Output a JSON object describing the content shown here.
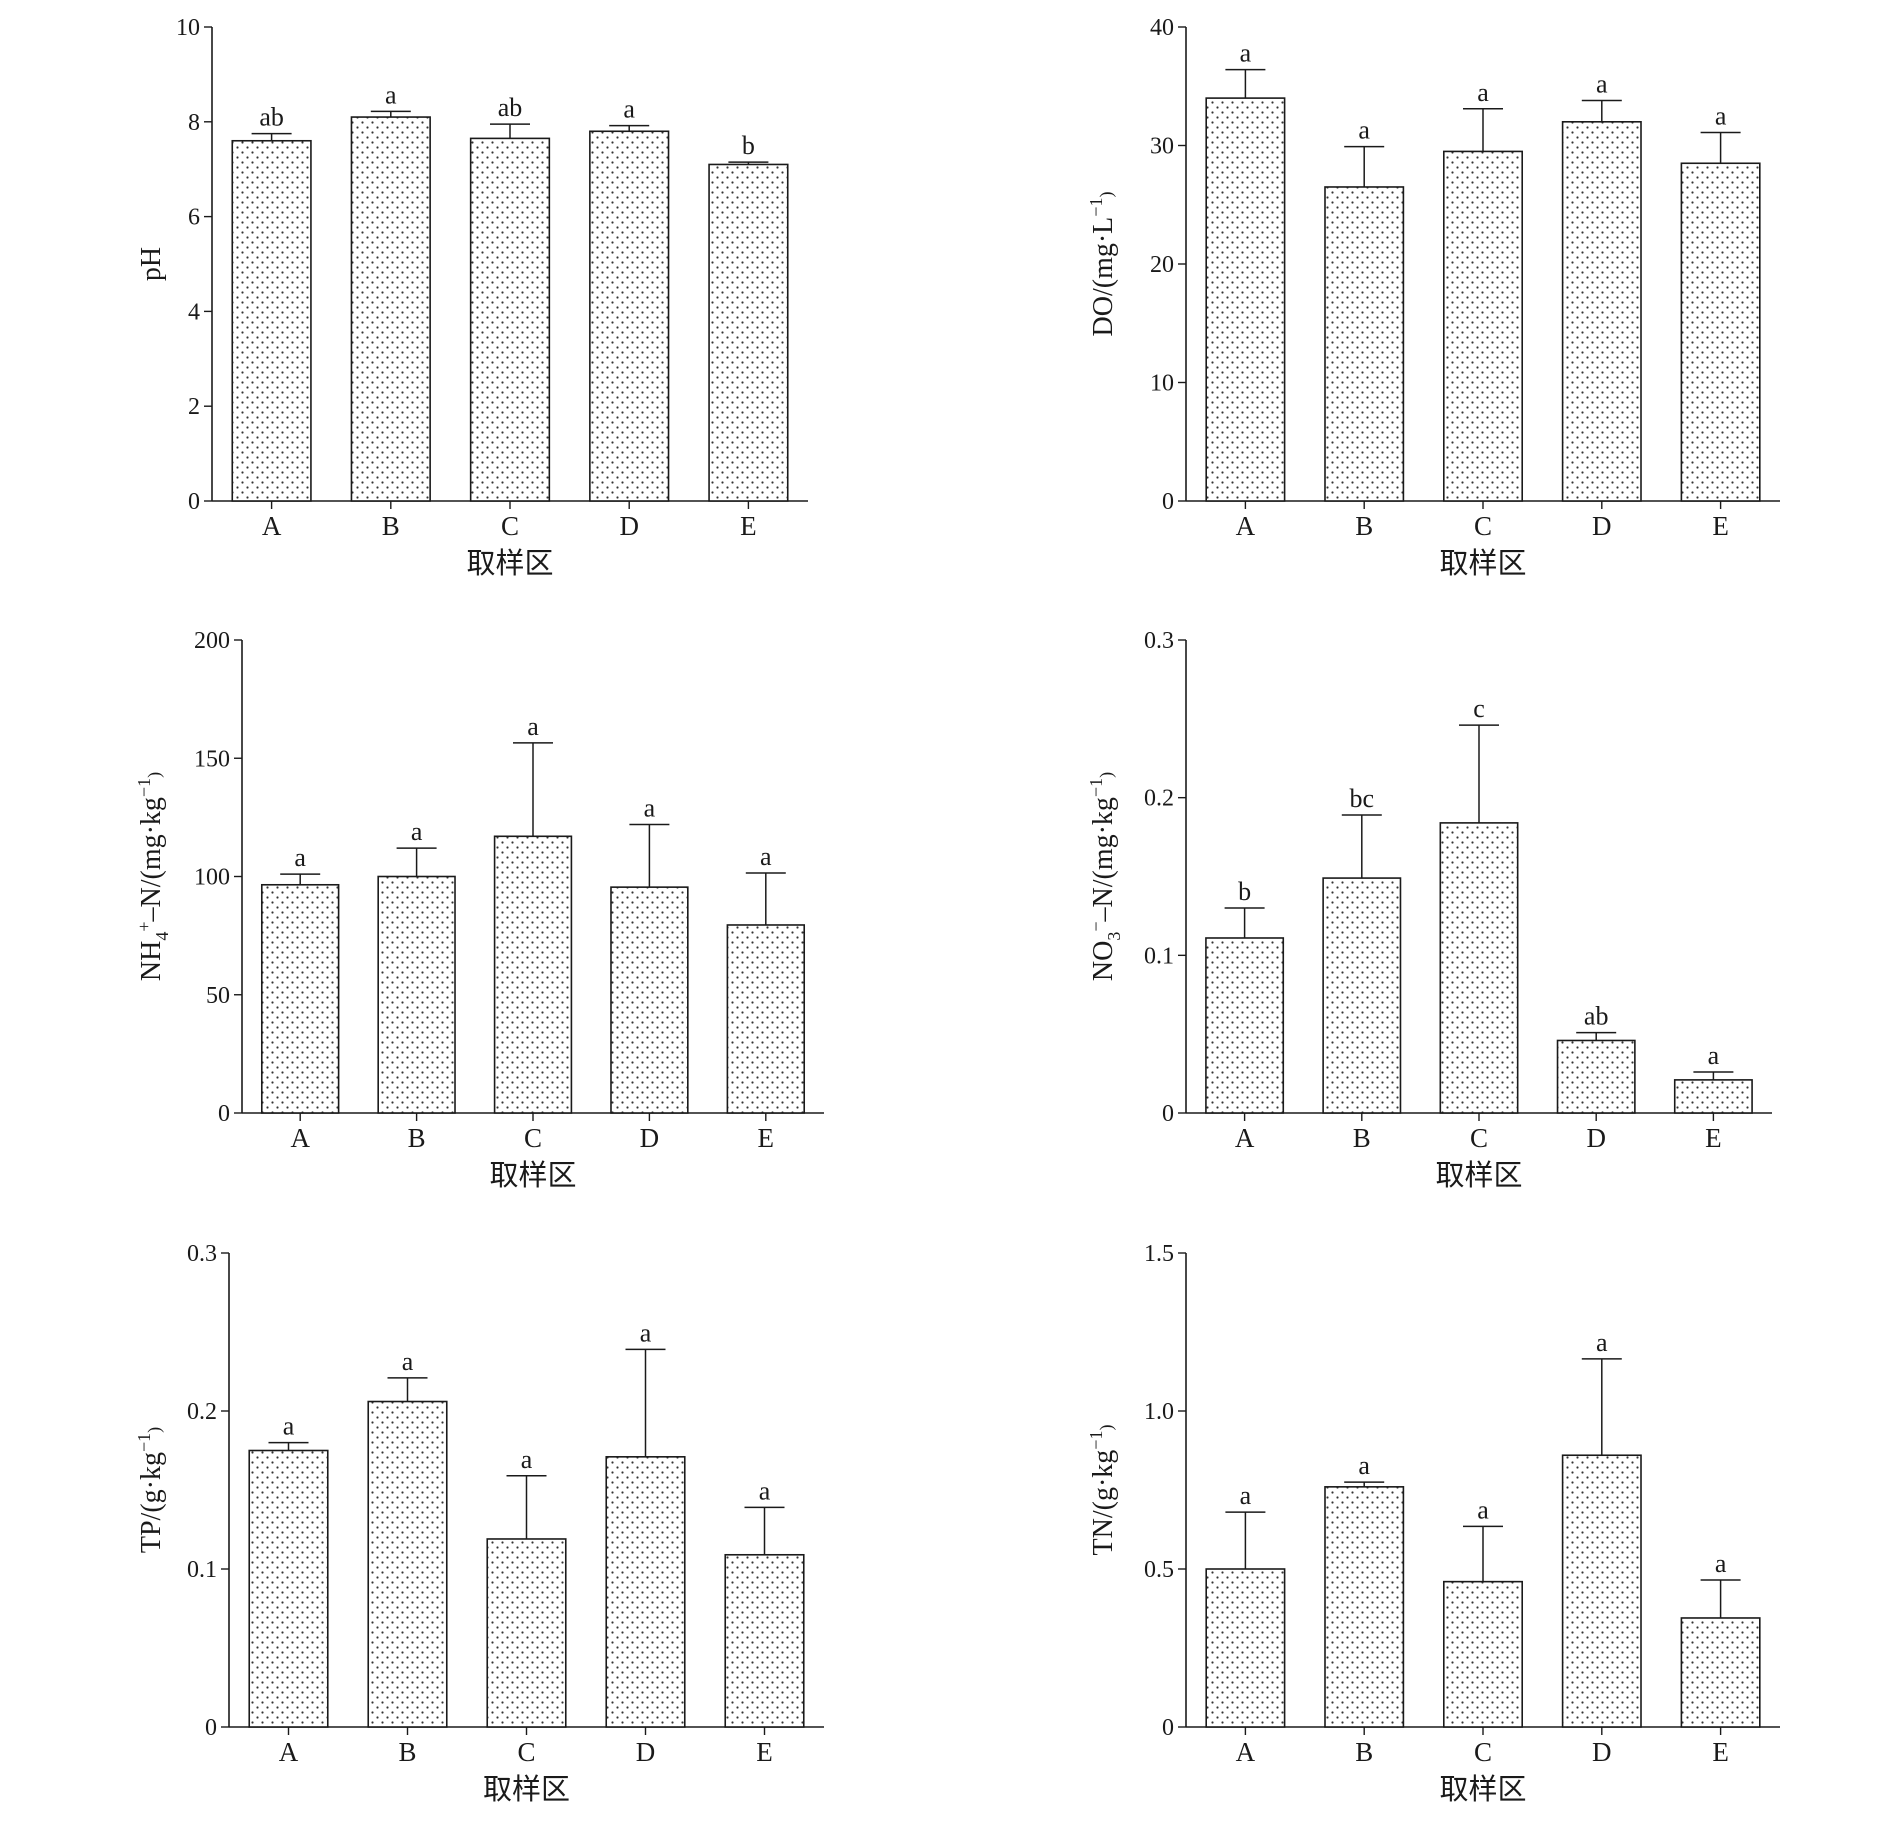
{
  "chart_data": [
    {
      "type": "bar",
      "categories": [
        "A",
        "B",
        "C",
        "D",
        "E"
      ],
      "values": [
        7.6,
        8.1,
        7.65,
        7.8,
        7.1
      ],
      "errors": [
        0.15,
        0.12,
        0.3,
        0.12,
        0.05
      ],
      "significance": [
        "ab",
        "a",
        "ab",
        "a",
        "b"
      ],
      "ylabel": "pH",
      "xlabel": "取样区",
      "ylim": [
        0,
        10
      ],
      "yticks": [
        "0",
        "2",
        "4",
        "6",
        "8",
        "10"
      ]
    },
    {
      "type": "bar",
      "categories": [
        "A",
        "B",
        "C",
        "D",
        "E"
      ],
      "values": [
        34,
        26.5,
        29.5,
        32,
        28.5
      ],
      "errors": [
        2.4,
        3.4,
        3.6,
        1.8,
        2.6
      ],
      "significance": [
        "a",
        "a",
        "a",
        "a",
        "a"
      ],
      "ylabel": "DO/(mg·L⁻¹)",
      "xlabel": "取样区",
      "ylim": [
        0,
        40
      ],
      "yticks": [
        "0",
        "10",
        "20",
        "30",
        "40"
      ]
    },
    {
      "type": "bar",
      "categories": [
        "A",
        "B",
        "C",
        "D",
        "E"
      ],
      "values": [
        96.5,
        100,
        117,
        95.5,
        79.5
      ],
      "errors": [
        4.5,
        12,
        39.5,
        26.5,
        22
      ],
      "significance": [
        "a",
        "a",
        "a",
        "a",
        "a"
      ],
      "ylabel": "NH₄⁺–N/(mg·kg⁻¹)",
      "xlabel": "取样区",
      "ylim": [
        0,
        200
      ],
      "yticks": [
        "0",
        "50",
        "100",
        "150",
        "200"
      ]
    },
    {
      "type": "bar",
      "categories": [
        "A",
        "B",
        "C",
        "D",
        "E"
      ],
      "values": [
        0.111,
        0.149,
        0.184,
        0.046,
        0.021
      ],
      "errors": [
        0.019,
        0.04,
        0.062,
        0.005,
        0.005
      ],
      "significance": [
        "b",
        "bc",
        "c",
        "ab",
        "a"
      ],
      "ylabel": "NO₃⁻–N/(mg·kg⁻¹)",
      "xlabel": "取样区",
      "ylim": [
        0,
        0.3
      ],
      "yticks": [
        "0",
        "0.1",
        "0.2",
        "0.3"
      ]
    },
    {
      "type": "bar",
      "categories": [
        "A",
        "B",
        "C",
        "D",
        "E"
      ],
      "values": [
        0.175,
        0.206,
        0.119,
        0.171,
        0.109
      ],
      "errors": [
        0.005,
        0.015,
        0.04,
        0.068,
        0.03
      ],
      "significance": [
        "a",
        "a",
        "a",
        "a",
        "a"
      ],
      "ylabel": "TP/(g·kg⁻¹)",
      "xlabel": "取样区",
      "ylim": [
        0,
        0.3
      ],
      "yticks": [
        "0",
        "0.1",
        "0.2",
        "0.3"
      ]
    },
    {
      "type": "bar",
      "categories": [
        "A",
        "B",
        "C",
        "D",
        "E"
      ],
      "values": [
        0.5,
        0.76,
        0.46,
        0.86,
        0.345
      ],
      "errors": [
        0.18,
        0.015,
        0.175,
        0.305,
        0.12
      ],
      "significance": [
        "a",
        "a",
        "a",
        "a",
        "a"
      ],
      "ylabel": "TN/(g·kg⁻¹)",
      "xlabel": "取样区",
      "ylim": [
        0,
        1.5
      ],
      "yticks": [
        "0",
        "0.5",
        "1.0",
        "1.5"
      ]
    }
  ]
}
